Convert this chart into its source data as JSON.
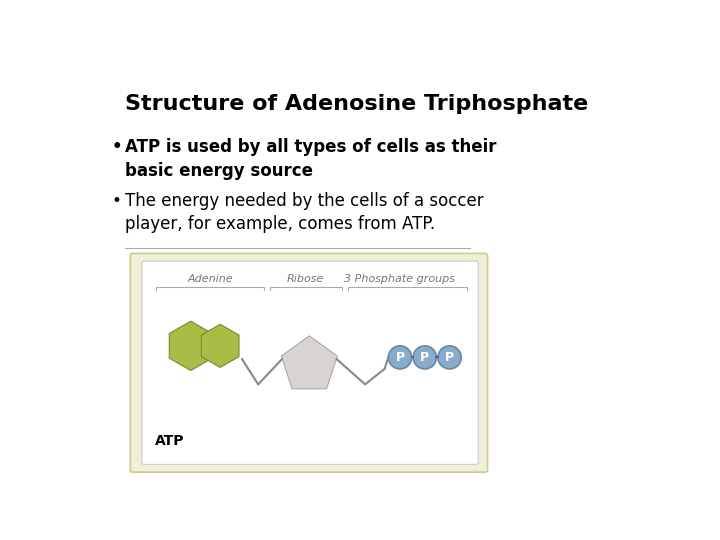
{
  "title": "Structure of Adenosine Triphosphate",
  "bullet1_bold": "ATP is used by all types of cells as their\nbasic energy source",
  "bullet2": "The energy needed by the cells of a soccer\nplayer, for example, comes from ATP.",
  "label_adenine": "Adenine",
  "label_ribose": "Ribose",
  "label_phosphate": "3 Phosphate groups",
  "label_atp": "ATP",
  "label_p": "P",
  "bg_color": "#ffffff",
  "box_bg": "#f0f0d8",
  "inner_box_bg": "#ffffff",
  "adenine_color": "#a8bc46",
  "adenine_edge": "#7a8c30",
  "ribose_color": "#d8d4d0",
  "ribose_edge": "#aaaaaa",
  "phosphate_color": "#8aabcc",
  "phosphate_edge": "#6688aa",
  "box_edge": "#cccc88",
  "inner_edge": "#cccccc",
  "bracket_color": "#aaaaaa",
  "label_color": "#777777",
  "connector_color": "#888888",
  "title_fontsize": 16,
  "bullet_fontsize": 12,
  "diagram_label_fontsize": 8,
  "atp_label_fontsize": 10
}
